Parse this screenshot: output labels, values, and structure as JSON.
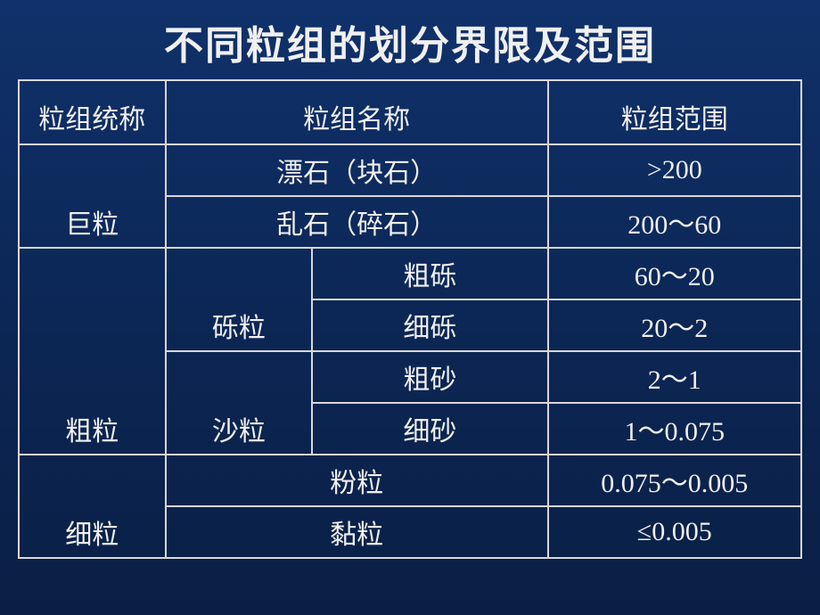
{
  "title": "不同粒组的划分界限及范围",
  "headers": {
    "group_category": "粒组统称",
    "group_name": "粒组名称",
    "group_range": "粒组范围"
  },
  "rows": {
    "giant": {
      "category": "巨粒",
      "boulder": {
        "name": "漂石（块石）",
        "range": ">200"
      },
      "rubble": {
        "name": "乱石（碎石）",
        "range": "200～60"
      }
    },
    "coarse": {
      "category": "粗粒",
      "gravel": {
        "name": "砾粒",
        "coarse_gravel": {
          "name": "粗砾",
          "range": "60～20"
        },
        "fine_gravel": {
          "name": "细砾",
          "range": "20～2"
        }
      },
      "sand": {
        "name": "沙粒",
        "coarse_sand": {
          "name": "粗砂",
          "range": "2～1"
        },
        "fine_sand": {
          "name": "细砂",
          "range": "1～0.075"
        }
      }
    },
    "fine": {
      "category": "细粒",
      "silt": {
        "name": "粉粒",
        "range": "0.075～0.005"
      },
      "clay": {
        "name": "黏粒",
        "range": "≤0.005"
      }
    }
  },
  "style": {
    "bg_top": "#10316b",
    "bg_bottom": "#0a1f45",
    "border_color": "#d8d8d8",
    "text_color": "#f0f0f0",
    "title_fontsize": 44,
    "cell_fontsize": 30
  }
}
